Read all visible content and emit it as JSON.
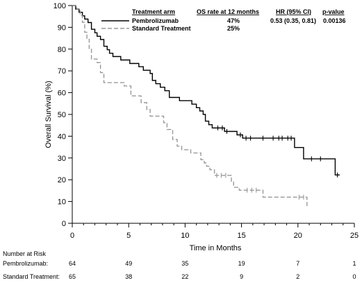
{
  "chart_data": {
    "type": "line",
    "title": "",
    "xlabel": "Time in Months",
    "ylabel": "Overall Survival (%)",
    "xlim": [
      0,
      25
    ],
    "ylim": [
      0,
      100
    ],
    "x_ticks": [
      0,
      5,
      10,
      15,
      20,
      25
    ],
    "y_ticks": [
      0,
      10,
      20,
      30,
      40,
      50,
      60,
      70,
      80,
      90,
      100
    ],
    "x_tick_labels": [
      "0",
      "5",
      "10",
      "15",
      "20",
      "25"
    ],
    "y_tick_labels": [
      "0",
      "10",
      "20",
      "30",
      "40",
      "50",
      "60",
      "70",
      "80",
      "90",
      "100"
    ],
    "grid": false,
    "legend_position": "top",
    "legend": {
      "headers": {
        "arm": "Treatment arm",
        "os_rate": "OS rate at 12 months",
        "hr": "HR (95% CI)",
        "pvalue": "p-value"
      },
      "rows": [
        {
          "name": "Pembrolizumab",
          "os_rate": "47%",
          "hr": "0.53 (0.35, 0.81)",
          "pvalue": "0.00136"
        },
        {
          "name": "Standard Treatment",
          "os_rate": "25%",
          "hr": "",
          "pvalue": ""
        }
      ]
    },
    "series": [
      {
        "name": "Pembrolizumab",
        "color": "#000000",
        "dash": "solid",
        "points": [
          [
            0,
            100
          ],
          [
            0.3,
            100
          ],
          [
            0.3,
            98.4
          ],
          [
            0.6,
            98.4
          ],
          [
            0.6,
            96.9
          ],
          [
            0.9,
            96.9
          ],
          [
            0.9,
            95.3
          ],
          [
            1.1,
            95.3
          ],
          [
            1.1,
            93.8
          ],
          [
            1.4,
            93.8
          ],
          [
            1.4,
            92.2
          ],
          [
            1.7,
            92.2
          ],
          [
            1.7,
            89.1
          ],
          [
            2.0,
            89.1
          ],
          [
            2.0,
            87.5
          ],
          [
            2.2,
            87.5
          ],
          [
            2.2,
            85.9
          ],
          [
            2.5,
            85.9
          ],
          [
            2.5,
            84.4
          ],
          [
            2.8,
            84.4
          ],
          [
            2.8,
            81.3
          ],
          [
            3.1,
            81.3
          ],
          [
            3.1,
            79.7
          ],
          [
            3.3,
            79.7
          ],
          [
            3.3,
            78.1
          ],
          [
            3.6,
            78.1
          ],
          [
            3.6,
            76.6
          ],
          [
            4.3,
            76.6
          ],
          [
            4.3,
            75.0
          ],
          [
            5.1,
            75.0
          ],
          [
            5.1,
            73.4
          ],
          [
            5.9,
            73.4
          ],
          [
            5.9,
            71.9
          ],
          [
            6.3,
            71.9
          ],
          [
            6.3,
            70.3
          ],
          [
            6.9,
            70.3
          ],
          [
            6.9,
            68.8
          ],
          [
            7.1,
            68.8
          ],
          [
            7.1,
            65.6
          ],
          [
            7.4,
            65.6
          ],
          [
            7.4,
            64.1
          ],
          [
            7.8,
            64.1
          ],
          [
            7.8,
            62.5
          ],
          [
            8.2,
            62.5
          ],
          [
            8.2,
            60.9
          ],
          [
            8.6,
            60.9
          ],
          [
            8.6,
            57.8
          ],
          [
            9.5,
            57.8
          ],
          [
            9.5,
            56.3
          ],
          [
            10.6,
            56.3
          ],
          [
            10.6,
            54.7
          ],
          [
            11.0,
            54.7
          ],
          [
            11.0,
            53.1
          ],
          [
            11.3,
            53.1
          ],
          [
            11.3,
            51.6
          ],
          [
            11.6,
            51.6
          ],
          [
            11.6,
            50.0
          ],
          [
            11.8,
            50.0
          ],
          [
            11.8,
            46.9
          ],
          [
            12.1,
            46.9
          ],
          [
            12.1,
            45.3
          ],
          [
            12.4,
            45.3
          ],
          [
            12.4,
            43.8
          ],
          [
            13.5,
            43.8
          ],
          [
            13.5,
            42.2
          ],
          [
            14.6,
            42.2
          ],
          [
            14.6,
            40.6
          ],
          [
            15.1,
            40.6
          ],
          [
            15.1,
            39.1
          ],
          [
            19.7,
            39.1
          ],
          [
            19.7,
            34.8
          ],
          [
            20.5,
            34.8
          ],
          [
            20.5,
            29.6
          ],
          [
            23.3,
            29.6
          ],
          [
            23.3,
            22.2
          ],
          [
            23.7,
            22.2
          ]
        ],
        "censor_times": [
          12.9,
          13.3,
          13.7,
          14.9,
          15.4,
          15.8,
          16.9,
          17.8,
          18.3,
          18.6,
          19.1,
          19.4,
          21.2,
          22.0,
          23.5
        ],
        "at_risk": [
          64,
          49,
          35,
          19,
          7,
          1
        ]
      },
      {
        "name": "Standard Treatment",
        "color": "#999999",
        "dash": "dashed",
        "points": [
          [
            0,
            100
          ],
          [
            0.4,
            100
          ],
          [
            0.4,
            98.5
          ],
          [
            0.7,
            98.5
          ],
          [
            0.7,
            95.4
          ],
          [
            0.9,
            95.4
          ],
          [
            0.9,
            92.3
          ],
          [
            1.1,
            92.3
          ],
          [
            1.1,
            87.7
          ],
          [
            1.3,
            87.7
          ],
          [
            1.3,
            84.6
          ],
          [
            1.5,
            84.6
          ],
          [
            1.5,
            80.0
          ],
          [
            1.7,
            80.0
          ],
          [
            1.7,
            75.4
          ],
          [
            2.2,
            75.4
          ],
          [
            2.2,
            73.8
          ],
          [
            2.5,
            73.8
          ],
          [
            2.5,
            69.2
          ],
          [
            2.8,
            69.2
          ],
          [
            2.8,
            64.6
          ],
          [
            4.6,
            64.6
          ],
          [
            4.6,
            63.1
          ],
          [
            5.2,
            63.1
          ],
          [
            5.2,
            58.5
          ],
          [
            6.1,
            58.5
          ],
          [
            6.1,
            55.4
          ],
          [
            6.6,
            55.4
          ],
          [
            6.6,
            52.3
          ],
          [
            6.9,
            52.3
          ],
          [
            6.9,
            49.2
          ],
          [
            8.1,
            49.2
          ],
          [
            8.1,
            46.2
          ],
          [
            8.4,
            46.2
          ],
          [
            8.4,
            43.1
          ],
          [
            8.9,
            43.1
          ],
          [
            8.9,
            38.5
          ],
          [
            9.3,
            38.5
          ],
          [
            9.3,
            35.4
          ],
          [
            9.7,
            35.4
          ],
          [
            9.7,
            33.8
          ],
          [
            10.5,
            33.8
          ],
          [
            10.5,
            32.3
          ],
          [
            11.4,
            32.3
          ],
          [
            11.4,
            29.2
          ],
          [
            11.7,
            29.2
          ],
          [
            11.7,
            27.7
          ],
          [
            11.9,
            27.7
          ],
          [
            11.9,
            26.2
          ],
          [
            12.2,
            26.2
          ],
          [
            12.2,
            24.6
          ],
          [
            12.6,
            24.6
          ],
          [
            12.6,
            22.0
          ],
          [
            14.1,
            22.0
          ],
          [
            14.1,
            19.2
          ],
          [
            14.3,
            19.2
          ],
          [
            14.3,
            16.5
          ],
          [
            14.8,
            16.5
          ],
          [
            14.8,
            15.2
          ],
          [
            16.9,
            15.2
          ],
          [
            16.9,
            12.0
          ],
          [
            20.8,
            12.0
          ],
          [
            20.8,
            7.2
          ]
        ],
        "censor_times": [
          12.8,
          13.2,
          13.6,
          15.5,
          15.9,
          16.3,
          20.1,
          20.5
        ],
        "at_risk": [
          65,
          38,
          22,
          9,
          2,
          0
        ]
      }
    ],
    "risk_table": {
      "title": "Number at Risk",
      "rows": [
        {
          "label": "Pembrolizumab:",
          "values": [
            "64",
            "49",
            "35",
            "19",
            "7",
            "1"
          ]
        },
        {
          "label": "Standard Treatment:",
          "values": [
            "65",
            "38",
            "22",
            "9",
            "2",
            "0"
          ]
        }
      ]
    }
  }
}
